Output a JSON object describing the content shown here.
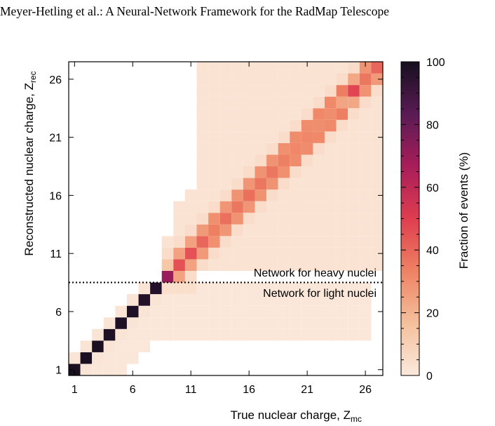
{
  "header": {
    "running_head": "Meyer-Hetling et al.: A Neural-Network Framework for the RadMap Telescope"
  },
  "chart_data": {
    "type": "heatmap",
    "xlabel": "True nuclear charge, Z",
    "xlabel_sub": "mc",
    "ylabel": "Reconstructed nuclear charge, Z",
    "ylabel_sub": "rec",
    "x_range": [
      1,
      27
    ],
    "y_range": [
      1,
      27
    ],
    "x_ticks": [
      1,
      6,
      11,
      16,
      21,
      26
    ],
    "y_ticks": [
      1,
      6,
      11,
      16,
      21,
      26
    ],
    "colorbar": {
      "label": "Fraction of events (%)",
      "range": [
        0,
        100
      ],
      "ticks": [
        0,
        20,
        40,
        60,
        80,
        100
      ],
      "colors": [
        "#fbe9dd",
        "#f5c09c",
        "#ee8263",
        "#df3d4f",
        "#a81d5a",
        "#5a1b54",
        "#160f1f"
      ]
    },
    "threshold_line": {
      "y": 8.5,
      "style": "dotted"
    },
    "annotations": [
      "Network for heavy nuclei",
      "Network for light nuclei"
    ],
    "diagonal_fraction": [
      99,
      99,
      99,
      98,
      98,
      98,
      97,
      97,
      70,
      45,
      45,
      40,
      34,
      38,
      36,
      38,
      36,
      36,
      34,
      32,
      32,
      30,
      30,
      24,
      48,
      36,
      40
    ],
    "off_diagonal_level": 2.5
  }
}
